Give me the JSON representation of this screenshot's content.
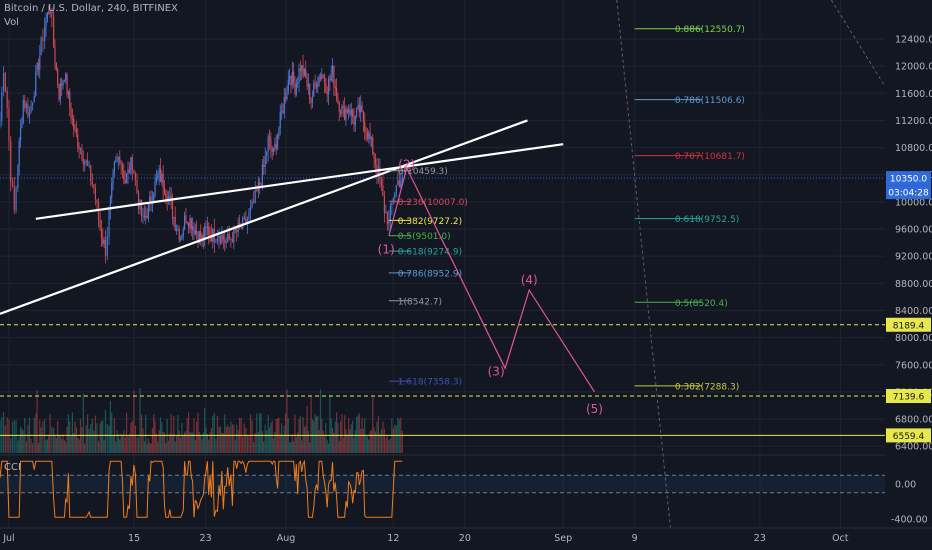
{
  "header": {
    "title": "Bitcoin / U.S. Dollar, 240, BITFINEX",
    "vol_label": "Vol",
    "cci_label": "CCI"
  },
  "colors": {
    "background": "#131722",
    "grid": "#1f2433",
    "up": "#4a78d6",
    "down": "#d04a55",
    "trendline": "#ffffff",
    "wave": "#e0559a",
    "price_line": "#2f6ad8",
    "cci_line": "#f07c1a",
    "hline_yellow": "#e8e84a",
    "axis_text": "#b2b5be"
  },
  "chart_data": {
    "type": "candlestick",
    "title": "Bitcoin / U.S. Dollar, 240, BITFINEX",
    "x_ticks": [
      "Jul",
      "15",
      "23",
      "Aug",
      "12",
      "20",
      "Sep",
      "9",
      "23",
      "Oct"
    ],
    "y_ticks": [
      6400,
      6800,
      7200,
      7600,
      8000,
      8400,
      8800,
      9200,
      9600,
      10000,
      10400,
      10800,
      11200,
      11600,
      12000,
      12400
    ],
    "ylim": [
      6300,
      12650
    ],
    "price_path": [
      {
        "day": 0,
        "price": 11200
      },
      {
        "day": 0.4,
        "price": 12000
      },
      {
        "day": 0.8,
        "price": 11400
      },
      {
        "day": 1.2,
        "price": 10400
      },
      {
        "day": 1.6,
        "price": 9850
      },
      {
        "day": 2.0,
        "price": 10600
      },
      {
        "day": 2.6,
        "price": 11500
      },
      {
        "day": 3.3,
        "price": 11300
      },
      {
        "day": 4.0,
        "price": 11800
      },
      {
        "day": 4.6,
        "price": 12300
      },
      {
        "day": 5.0,
        "price": 12600
      },
      {
        "day": 5.6,
        "price": 12900
      },
      {
        "day": 6.0,
        "price": 12300
      },
      {
        "day": 6.6,
        "price": 11600
      },
      {
        "day": 7.2,
        "price": 11900
      },
      {
        "day": 7.8,
        "price": 11400
      },
      {
        "day": 8.4,
        "price": 11000
      },
      {
        "day": 9.0,
        "price": 10800
      },
      {
        "day": 9.8,
        "price": 10500
      },
      {
        "day": 10.5,
        "price": 10200
      },
      {
        "day": 11.2,
        "price": 9600
      },
      {
        "day": 11.8,
        "price": 9300
      },
      {
        "day": 12.2,
        "price": 9800
      },
      {
        "day": 12.8,
        "price": 10500
      },
      {
        "day": 13.4,
        "price": 10700
      },
      {
        "day": 14.0,
        "price": 10300
      },
      {
        "day": 14.8,
        "price": 10600
      },
      {
        "day": 15.5,
        "price": 10000
      },
      {
        "day": 16.0,
        "price": 9700
      },
      {
        "day": 16.6,
        "price": 9900
      },
      {
        "day": 17.2,
        "price": 10200
      },
      {
        "day": 17.8,
        "price": 10400
      },
      {
        "day": 18.4,
        "price": 10250
      },
      {
        "day": 19.0,
        "price": 10000
      },
      {
        "day": 19.6,
        "price": 9700
      },
      {
        "day": 20.2,
        "price": 9500
      },
      {
        "day": 20.8,
        "price": 9800
      },
      {
        "day": 21.4,
        "price": 9700
      },
      {
        "day": 22.0,
        "price": 9550
      },
      {
        "day": 22.6,
        "price": 9450
      },
      {
        "day": 23.2,
        "price": 9600
      },
      {
        "day": 23.8,
        "price": 9500
      },
      {
        "day": 24.5,
        "price": 9550
      },
      {
        "day": 25.3,
        "price": 9400
      },
      {
        "day": 26.0,
        "price": 9500
      },
      {
        "day": 26.8,
        "price": 9600
      },
      {
        "day": 27.5,
        "price": 9700
      },
      {
        "day": 28.2,
        "price": 9900
      },
      {
        "day": 28.9,
        "price": 10200
      },
      {
        "day": 29.5,
        "price": 10500
      },
      {
        "day": 30.0,
        "price": 10900
      },
      {
        "day": 30.6,
        "price": 10700
      },
      {
        "day": 31.2,
        "price": 11100
      },
      {
        "day": 31.8,
        "price": 11500
      },
      {
        "day": 32.4,
        "price": 11900
      },
      {
        "day": 33.0,
        "price": 11700
      },
      {
        "day": 33.6,
        "price": 12000
      },
      {
        "day": 34.2,
        "price": 11800
      },
      {
        "day": 34.8,
        "price": 11500
      },
      {
        "day": 35.4,
        "price": 11800
      },
      {
        "day": 36.0,
        "price": 11900
      },
      {
        "day": 36.6,
        "price": 11700
      },
      {
        "day": 37.2,
        "price": 11900
      },
      {
        "day": 37.8,
        "price": 11500
      },
      {
        "day": 38.4,
        "price": 11300
      },
      {
        "day": 39.0,
        "price": 11400
      },
      {
        "day": 39.6,
        "price": 11200
      },
      {
        "day": 40.2,
        "price": 11350
      },
      {
        "day": 40.8,
        "price": 11150
      },
      {
        "day": 41.4,
        "price": 10900
      },
      {
        "day": 42.0,
        "price": 10600
      },
      {
        "day": 42.5,
        "price": 10300
      },
      {
        "day": 43.0,
        "price": 9900
      },
      {
        "day": 43.5,
        "price": 9700
      },
      {
        "day": 44.0,
        "price": 10100
      },
      {
        "day": 44.5,
        "price": 10300
      },
      {
        "day": 45.0,
        "price": 10350
      }
    ],
    "volume_range": [
      0,
      100
    ],
    "cci_ticks": [
      "0.00",
      "-400.00"
    ],
    "trendlines": [
      {
        "from": {
          "day": 4,
          "price": 9750
        },
        "to": {
          "day": 63,
          "price": 10850
        }
      },
      {
        "from": {
          "day": 0,
          "price": 8350
        },
        "to": {
          "day": 59,
          "price": 11200
        }
      }
    ],
    "waves": [
      {
        "label": "(1)",
        "day": 43.2,
        "price": 9300
      },
      {
        "label": "(2)",
        "day": 45.5,
        "price": 10550
      },
      {
        "label": "(3)",
        "day": 55.5,
        "price": 7500
      },
      {
        "label": "(4)",
        "day": 59.2,
        "price": 8850
      },
      {
        "label": "(5)",
        "day": 66.5,
        "price": 6950
      }
    ],
    "wave_path": [
      {
        "day": 43.5,
        "price": 9500
      },
      {
        "day": 45.5,
        "price": 10500
      },
      {
        "day": 56.5,
        "price": 7550
      },
      {
        "day": 59.2,
        "price": 8700
      },
      {
        "day": 66.5,
        "price": 7200
      }
    ],
    "fib_retracement": [
      {
        "label": "0(10459.3)",
        "price": 10459.3,
        "color": "#9598a1"
      },
      {
        "label": "0.236(10007.0)",
        "price": 10007.0,
        "color": "#d04a55"
      },
      {
        "label": "0.382(9727.2)",
        "price": 9727.2,
        "color": "#e8e84a"
      },
      {
        "label": "0.5(9501.0)",
        "price": 9501.0,
        "color": "#4caf50"
      },
      {
        "label": "0.618(9274.9)",
        "price": 9274.9,
        "color": "#26a69a"
      },
      {
        "label": "0.786(8952.9)",
        "price": 8952.9,
        "color": "#5b9bd5"
      },
      {
        "label": "1(8542.7)",
        "price": 8542.7,
        "color": "#9598a1"
      },
      {
        "label": "1.618(7358.3)",
        "price": 7358.3,
        "color": "#3f51b5"
      }
    ],
    "fib_extension": [
      {
        "label": "0.886(12550.7)",
        "price": 12550.7,
        "color": "#7fd04a"
      },
      {
        "label": "0.786(11506.6)",
        "price": 11506.6,
        "color": "#5b9bd5"
      },
      {
        "label": "0.707(10681.7)",
        "price": 10681.7,
        "color": "#d0323c"
      },
      {
        "label": "0.618(9752.5)",
        "price": 9752.5,
        "color": "#26a69a"
      },
      {
        "label": "0.5(8520.4)",
        "price": 8520.4,
        "color": "#4caf50"
      },
      {
        "label": "0.382(7288.3)",
        "price": 7288.3,
        "color": "#c8c83a"
      }
    ],
    "price_labels": [
      {
        "label": "10350.0",
        "price": 10350.0,
        "bg": "#2f6ad8",
        "fg": "#ffffff"
      },
      {
        "label": "03:04:28",
        "price": 10200,
        "bg": "#2f6ad8",
        "fg": "#ffffff"
      },
      {
        "label": "8189.4",
        "price": 8189.4,
        "bg": "#e8e84a",
        "fg": "#131722"
      },
      {
        "label": "7139.6",
        "price": 7139.6,
        "bg": "#e8e84a",
        "fg": "#131722"
      },
      {
        "label": "6559.4",
        "price": 6559.4,
        "bg": "#e8e84a",
        "fg": "#131722"
      }
    ],
    "hlines": [
      {
        "price": 10350.0,
        "style": "dotted",
        "color": "#2f6ad8"
      },
      {
        "price": 8189.4,
        "style": "dashed",
        "color": "#e8e84a"
      },
      {
        "price": 7139.6,
        "style": "dashed",
        "color": "#e8e84a"
      },
      {
        "price": 6559.4,
        "style": "solid",
        "color": "#e8e84a"
      }
    ]
  }
}
